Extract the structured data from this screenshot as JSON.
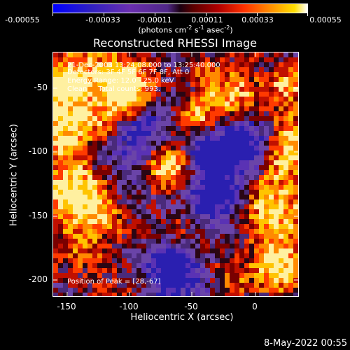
{
  "colorbar": {
    "ticks": [
      "-0.00055",
      "-0.00033",
      "-0.00011",
      "0.00011",
      "0.00033",
      "0.00055"
    ],
    "units_prefix": "(photons cm",
    "units_sup1": "-2",
    "units_mid1": " s",
    "units_sup2": "-1",
    "units_mid2": " asec",
    "units_sup3": "-2",
    "units_suffix": ")"
  },
  "title": "Reconstructed RHESSI Image",
  "info": {
    "line1": "21-Dec-2003 13:24:08.000 to 13:25:40.000",
    "line2": "Detectors: 3F 4F 5F 6F 7F 8F, Att 0",
    "line3": "Energy Range: 12.0 - 25.0 keV",
    "line4": "Clean     Total counts: 993.",
    "peak": "Position of Peak = [28,-67]"
  },
  "chart_data": {
    "type": "heatmap",
    "title": "Reconstructed RHESSI Image",
    "xlabel": "Heliocentric X (arcsec)",
    "ylabel": "Heliocentric Y (arcsec)",
    "xlim": [
      -160,
      35
    ],
    "ylim": [
      -213,
      -27
    ],
    "xticks": [
      "-150",
      "-100",
      "-50",
      "0"
    ],
    "yticks": [
      "-50",
      "-100",
      "-150",
      "-200"
    ],
    "colorbar_range": [
      -0.00055,
      0.00055
    ],
    "peak_position": [
      28,
      -67
    ]
  },
  "footer": "8-May-2022 00:55"
}
